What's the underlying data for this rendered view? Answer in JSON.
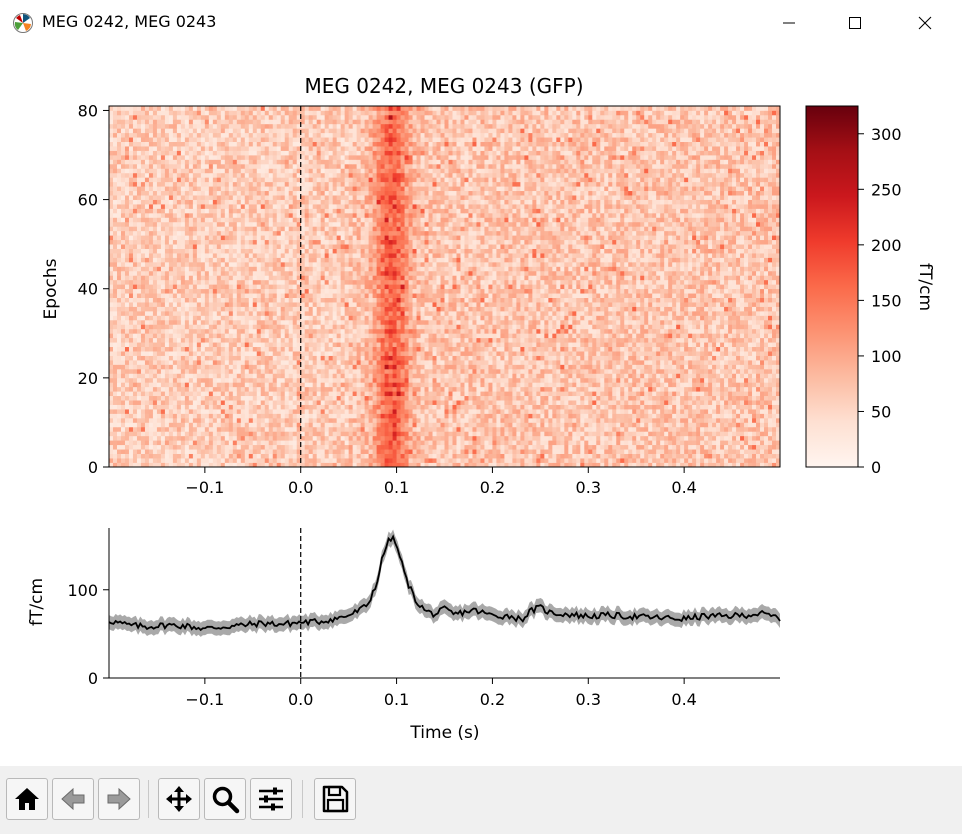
{
  "window": {
    "title": "MEG 0242, MEG 0243",
    "buttons": [
      "minimize-icon",
      "maximize-icon",
      "close-icon"
    ]
  },
  "toolbar": {
    "buttons": [
      {
        "name": "home-button",
        "icon": "home-icon"
      },
      {
        "name": "back-button",
        "icon": "arrow-left-icon"
      },
      {
        "name": "forward-button",
        "icon": "arrow-right-icon"
      },
      {
        "name": "pan-button",
        "icon": "move-icon"
      },
      {
        "name": "zoom-button",
        "icon": "magnifier-icon"
      },
      {
        "name": "configure-button",
        "icon": "sliders-icon"
      },
      {
        "name": "save-button",
        "icon": "floppy-disk-icon"
      }
    ]
  },
  "chart_data": [
    {
      "type": "heatmap",
      "title": "MEG 0242, MEG 0243 (GFP)",
      "xlabel": "",
      "ylabel": "Epochs",
      "xlim": [
        -0.2,
        0.5
      ],
      "ylim": [
        0,
        81
      ],
      "xticks": [
        -0.1,
        0.0,
        0.1,
        0.2,
        0.3,
        0.4
      ],
      "xtick_labels": [
        "−0.1",
        "0.0",
        "0.1",
        "0.2",
        "0.3",
        "0.4"
      ],
      "yticks": [
        0,
        20,
        40,
        60,
        80
      ],
      "ytick_labels": [
        "0",
        "20",
        "40",
        "60",
        "80"
      ],
      "n_epochs": 81,
      "colormap": "Reds",
      "colorbar": {
        "label": "fT/cm",
        "range": [
          0,
          325
        ],
        "ticks": [
          0,
          50,
          100,
          150,
          200,
          250,
          300
        ],
        "tick_labels": [
          "0",
          "50",
          "100",
          "150",
          "200",
          "250",
          "300"
        ]
      },
      "vline_x": 0.0,
      "grid": false,
      "description_values": {
        "baseline_mean_fTcm": 60,
        "peak_time_s": 0.095,
        "peak_mean_fTcm": 158
      }
    },
    {
      "type": "line",
      "xlabel": "Time (s)",
      "ylabel": "fT/cm",
      "xlim": [
        -0.2,
        0.5
      ],
      "ylim": [
        0,
        170
      ],
      "xticks": [
        -0.1,
        0.0,
        0.1,
        0.2,
        0.3,
        0.4
      ],
      "xtick_labels": [
        "−0.1",
        "0.0",
        "0.1",
        "0.2",
        "0.3",
        "0.4"
      ],
      "yticks": [
        0,
        100
      ],
      "ytick_labels": [
        "0",
        "100"
      ],
      "vline_x": 0.0,
      "grid": false,
      "line_color": "#000000",
      "band_color": "#a0a0a0",
      "series": [
        {
          "x": [
            -0.2,
            -0.18,
            -0.16,
            -0.14,
            -0.12,
            -0.1,
            -0.08,
            -0.06,
            -0.04,
            -0.02,
            0.0,
            0.02,
            0.04,
            0.05,
            0.06,
            0.07,
            0.08,
            0.085,
            0.09,
            0.095,
            0.1,
            0.105,
            0.11,
            0.12,
            0.13,
            0.14,
            0.15,
            0.16,
            0.18,
            0.2,
            0.22,
            0.23,
            0.24,
            0.25,
            0.26,
            0.28,
            0.3,
            0.32,
            0.34,
            0.36,
            0.38,
            0.4,
            0.42,
            0.44,
            0.46,
            0.48,
            0.5
          ],
          "y": [
            65,
            60,
            58,
            60,
            59,
            56,
            58,
            60,
            62,
            61,
            63,
            64,
            68,
            71,
            76,
            83,
            110,
            135,
            152,
            160,
            150,
            132,
            112,
            88,
            76,
            72,
            78,
            72,
            77,
            71,
            70,
            66,
            76,
            80,
            74,
            72,
            70,
            71,
            70,
            69,
            68,
            67,
            70,
            70,
            71,
            73,
            68
          ],
          "band_halfwidth": 8
        }
      ]
    }
  ]
}
